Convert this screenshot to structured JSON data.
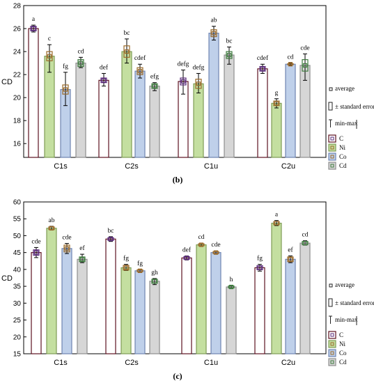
{
  "chart_data": [
    {
      "type": "bar",
      "ylabel": "CD",
      "ylim": [
        14.8,
        28
      ],
      "yticks": [
        16,
        18,
        20,
        22,
        24,
        26,
        28
      ],
      "categories": [
        "C1s",
        "C2s",
        "C1u",
        "C2u"
      ],
      "panel_label": "(b)",
      "legend_stats": [
        "average",
        "± standard error",
        "min-max"
      ],
      "series": [
        {
          "name": "C",
          "values": [
            26.0,
            21.5,
            21.4,
            22.5
          ],
          "min": [
            25.7,
            21.0,
            20.3,
            22.1
          ],
          "max": [
            26.3,
            22.1,
            22.4,
            22.9
          ],
          "se": [
            0.2,
            0.2,
            0.3,
            0.2
          ],
          "letters": [
            "a",
            "def",
            "defg",
            "cdef"
          ]
        },
        {
          "name": "Ni",
          "values": [
            23.6,
            24.0,
            21.2,
            19.5
          ],
          "min": [
            22.2,
            23.0,
            20.4,
            19.1
          ],
          "max": [
            24.6,
            25.1,
            22.1,
            19.9
          ],
          "se": [
            0.4,
            0.5,
            0.4,
            0.2
          ],
          "letters": [
            "c",
            "bc",
            "defg",
            "g"
          ]
        },
        {
          "name": "Co",
          "values": [
            20.7,
            22.3,
            25.6,
            22.9
          ],
          "min": [
            19.3,
            21.7,
            25.0,
            22.8
          ],
          "max": [
            22.2,
            22.9,
            26.2,
            23.0
          ],
          "se": [
            0.4,
            0.3,
            0.3,
            0.05
          ],
          "letters": [
            "fg",
            "cdef",
            "ab",
            "cd"
          ]
        },
        {
          "name": "Cd",
          "values": [
            23.0,
            21.0,
            23.7,
            22.8
          ],
          "min": [
            22.6,
            20.6,
            22.9,
            21.5
          ],
          "max": [
            23.5,
            21.3,
            24.4,
            23.8
          ],
          "se": [
            0.3,
            0.2,
            0.3,
            0.5
          ],
          "letters": [
            "cd",
            "efg",
            "bc",
            "cde"
          ]
        }
      ]
    },
    {
      "type": "bar",
      "ylabel": "CD",
      "ylim": [
        15,
        60
      ],
      "yticks": [
        15,
        20,
        25,
        30,
        35,
        40,
        45,
        50,
        55,
        60
      ],
      "categories": [
        "C1s",
        "C2s",
        "C1u",
        "C2u"
      ],
      "panel_label": "(c)",
      "legend_stats": [
        "average",
        "± standard error",
        "min-max"
      ],
      "series": [
        {
          "name": "C",
          "values": [
            45.0,
            49.0,
            43.4,
            40.5
          ],
          "min": [
            43.5,
            48.3,
            42.8,
            39.5
          ],
          "max": [
            46.5,
            49.7,
            44.0,
            41.5
          ],
          "se": [
            0.8,
            0.4,
            0.4,
            0.6
          ],
          "letters": [
            "cde",
            "bc",
            "def",
            "fg"
          ]
        },
        {
          "name": "Ni",
          "values": [
            52.2,
            40.5,
            47.3,
            53.7
          ],
          "min": [
            51.7,
            39.7,
            46.8,
            53.0
          ],
          "max": [
            52.8,
            41.5,
            47.8,
            54.5
          ],
          "se": [
            0.4,
            0.7,
            0.3,
            0.5
          ],
          "letters": [
            "ab",
            "fg",
            "cd",
            "a"
          ]
        },
        {
          "name": "Co",
          "values": [
            46.2,
            39.6,
            45.0,
            43.0
          ],
          "min": [
            44.7,
            39.1,
            44.6,
            42.0
          ],
          "max": [
            47.7,
            40.0,
            45.5,
            44.0
          ],
          "se": [
            1.0,
            0.3,
            0.3,
            0.7
          ],
          "letters": [
            "cde",
            "fg",
            "cde",
            "ef"
          ]
        },
        {
          "name": "Cd",
          "values": [
            43.0,
            36.5,
            34.8,
            47.8
          ],
          "min": [
            42.0,
            35.5,
            34.4,
            47.2
          ],
          "max": [
            44.5,
            37.3,
            35.2,
            48.5
          ],
          "se": [
            0.7,
            0.6,
            0.3,
            0.5
          ],
          "letters": [
            "ef",
            "gh",
            "h",
            "cd"
          ]
        }
      ]
    }
  ],
  "colors": {
    "C": "#ffffff",
    "Ni": "#f6f0f2",
    "Co": "#c8e0a4",
    "Cd": "#d3d3d3",
    "C_edge": "#6b1520",
    "Ni_edge": "#7a4040",
    "Co_edge": "#7f9f5a",
    "Cd_edge": "#8a8a8a",
    "Co_blue": "#bfcfe9"
  }
}
